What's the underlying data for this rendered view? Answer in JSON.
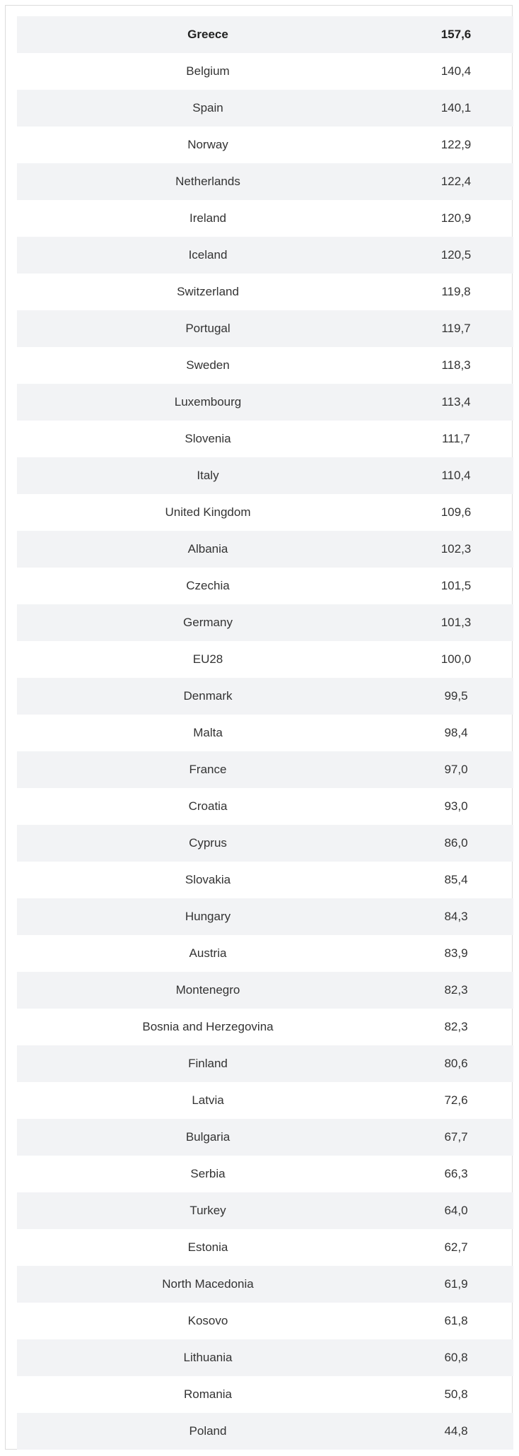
{
  "rows": [
    {
      "country": "Greece",
      "value": "157,6"
    },
    {
      "country": "Belgium",
      "value": "140,4"
    },
    {
      "country": "Spain",
      "value": "140,1"
    },
    {
      "country": "Norway",
      "value": "122,9"
    },
    {
      "country": "Netherlands",
      "value": "122,4"
    },
    {
      "country": "Ireland",
      "value": "120,9"
    },
    {
      "country": "Iceland",
      "value": "120,5"
    },
    {
      "country": "Switzerland",
      "value": "119,8"
    },
    {
      "country": "Portugal",
      "value": "119,7"
    },
    {
      "country": "Sweden",
      "value": "118,3"
    },
    {
      "country": "Luxembourg",
      "value": "113,4"
    },
    {
      "country": "Slovenia",
      "value": "111,7"
    },
    {
      "country": "Italy",
      "value": "110,4"
    },
    {
      "country": "United Kingdom",
      "value": "109,6"
    },
    {
      "country": "Albania",
      "value": "102,3"
    },
    {
      "country": "Czechia",
      "value": "101,5"
    },
    {
      "country": "Germany",
      "value": "101,3"
    },
    {
      "country": "EU28",
      "value": "100,0"
    },
    {
      "country": "Denmark",
      "value": "99,5"
    },
    {
      "country": "Malta",
      "value": "98,4"
    },
    {
      "country": "France",
      "value": "97,0"
    },
    {
      "country": "Croatia",
      "value": "93,0"
    },
    {
      "country": "Cyprus",
      "value": "86,0"
    },
    {
      "country": "Slovakia",
      "value": "85,4"
    },
    {
      "country": "Hungary",
      "value": "84,3"
    },
    {
      "country": "Austria",
      "value": "83,9"
    },
    {
      "country": "Montenegro",
      "value": "82,3"
    },
    {
      "country": "Bosnia and Herzegovina",
      "value": "82,3"
    },
    {
      "country": "Finland",
      "value": "80,6"
    },
    {
      "country": "Latvia",
      "value": "72,6"
    },
    {
      "country": "Bulgaria",
      "value": "67,7"
    },
    {
      "country": "Serbia",
      "value": "66,3"
    },
    {
      "country": "Turkey",
      "value": "64,0"
    },
    {
      "country": "Estonia",
      "value": "62,7"
    },
    {
      "country": "North Macedonia",
      "value": "61,9"
    },
    {
      "country": "Kosovo",
      "value": "61,8"
    },
    {
      "country": "Lithuania",
      "value": "60,8"
    },
    {
      "country": "Romania",
      "value": "50,8"
    },
    {
      "country": "Poland",
      "value": "44,8"
    }
  ]
}
